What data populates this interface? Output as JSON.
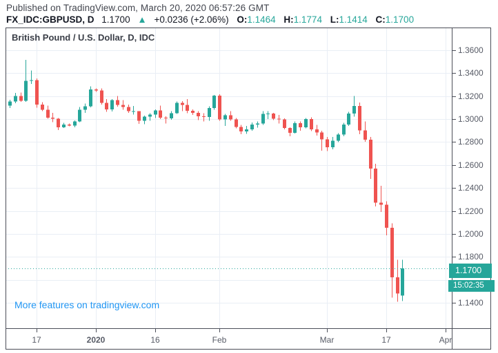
{
  "header": {
    "published": "Published on TradingView.com, March 20, 2020 06:57:26 GMT",
    "symbol": "FX_IDC:GBPUSD, D",
    "price": "1.1700",
    "arrow": "▲",
    "change": "+0.0236 (+2.06%)",
    "open_label": "O:",
    "open": "1.1464",
    "high_label": "H:",
    "high": "1.1774",
    "low_label": "L:",
    "low": "1.1414",
    "close_label": "C:",
    "close": "1.1700"
  },
  "chart": {
    "title": "British Pound / U.S. Dollar, D, IDC",
    "watermark": "More features on tradingview.com",
    "last_price_label": "1.1700",
    "countdown": "15:02:35",
    "colors": {
      "up": "#26a69a",
      "down": "#ef5350",
      "last_price_line": "#26a69a",
      "label_bg": "#26a69a",
      "watermark_blue": "#2196f3",
      "grid": "#e9eef5",
      "frame": "#4a4d57",
      "axis_text": "#575b66"
    }
  },
  "chart_data": {
    "type": "candlestick",
    "title": "British Pound / U.S. Dollar, D, IDC",
    "symbol": "GBPUSD",
    "interval": "D",
    "last_price": 1.17,
    "y_axis": {
      "visible_ticks": [
        "1.3600",
        "1.3400",
        "1.3200",
        "1.3000",
        "1.2800",
        "1.2600",
        "1.2400",
        "1.2200",
        "1.2000",
        "1.1800",
        "1.1400"
      ],
      "grid_step": 0.02,
      "grid_top": 1.36,
      "grid_lines": 12,
      "ylim": [
        1.118,
        1.38
      ]
    },
    "x_axis": {
      "ticks": [
        {
          "label": "17",
          "i": 5,
          "bold": false
        },
        {
          "label": "2020",
          "i": 16,
          "bold": true
        },
        {
          "label": "16",
          "i": 27,
          "bold": false
        },
        {
          "label": "Feb",
          "i": 39,
          "bold": false
        },
        {
          "label": "Mar",
          "i": 59,
          "bold": false
        },
        {
          "label": "17",
          "i": 70,
          "bold": false
        },
        {
          "label": "Apr",
          "i": 81,
          "bold": false
        }
      ]
    },
    "candles": [
      [
        "Dec 10",
        1.3118,
        1.3167,
        1.3095,
        1.3152
      ],
      [
        "Dec 11",
        1.3152,
        1.3228,
        1.3139,
        1.32
      ],
      [
        "Dec 12",
        1.32,
        1.323,
        1.315,
        1.3158
      ],
      [
        "Dec 13",
        1.3158,
        1.3515,
        1.315,
        1.3332
      ],
      [
        "Dec 16",
        1.3332,
        1.3422,
        1.3305,
        1.334
      ],
      [
        "Dec 17",
        1.334,
        1.3355,
        1.31,
        1.3125
      ],
      [
        "Dec 18",
        1.3125,
        1.3148,
        1.307,
        1.308
      ],
      [
        "Dec 19",
        1.308,
        1.3118,
        1.3003,
        1.3012
      ],
      [
        "Dec 20",
        1.3012,
        1.3055,
        1.2975,
        1.3002
      ],
      [
        "Dec 23",
        1.3002,
        1.3008,
        1.2905,
        1.293
      ],
      [
        "Dec 24",
        1.293,
        1.2968,
        1.2923,
        1.2952
      ],
      [
        "Dec 25",
        1.2952,
        1.2962,
        1.2938,
        1.2944
      ],
      [
        "Dec 26",
        1.2944,
        1.2988,
        1.2928,
        1.298
      ],
      [
        "Dec 27",
        1.298,
        1.3105,
        1.2975,
        1.3082
      ],
      [
        "Dec 30",
        1.3082,
        1.3135,
        1.3055,
        1.311
      ],
      [
        "Dec 31",
        1.311,
        1.3284,
        1.3102,
        1.3257
      ],
      [
        "Jan 1",
        1.3257,
        1.3268,
        1.3238,
        1.3248
      ],
      [
        "Jan 2",
        1.3248,
        1.3268,
        1.3125,
        1.3142
      ],
      [
        "Jan 3",
        1.3142,
        1.3175,
        1.3062,
        1.3085
      ],
      [
        "Jan 6",
        1.3085,
        1.3175,
        1.3065,
        1.3166
      ],
      [
        "Jan 7",
        1.3166,
        1.32,
        1.3108,
        1.3122
      ],
      [
        "Jan 8",
        1.3122,
        1.3165,
        1.308,
        1.3105
      ],
      [
        "Jan 9",
        1.3105,
        1.3125,
        1.3055,
        1.307
      ],
      [
        "Jan 10",
        1.3065,
        1.3115,
        1.304,
        1.3068
      ],
      [
        "Jan 13",
        1.3068,
        1.307,
        1.296,
        1.2985
      ],
      [
        "Jan 14",
        1.2985,
        1.303,
        1.2955,
        1.3022
      ],
      [
        "Jan 15",
        1.3022,
        1.305,
        1.2985,
        1.304
      ],
      [
        "Jan 16",
        1.304,
        1.3085,
        1.301,
        1.3075
      ],
      [
        "Jan 17",
        1.3075,
        1.3118,
        1.3,
        1.3012
      ],
      [
        "Jan 20",
        1.3012,
        1.3025,
        1.2962,
        1.3005
      ],
      [
        "Jan 21",
        1.3005,
        1.3068,
        1.2995,
        1.305
      ],
      [
        "Jan 22",
        1.305,
        1.3153,
        1.3045,
        1.314
      ],
      [
        "Jan 23",
        1.314,
        1.3155,
        1.307,
        1.3122
      ],
      [
        "Jan 24",
        1.3122,
        1.3175,
        1.3052,
        1.3072
      ],
      [
        "Jan 27",
        1.3072,
        1.3085,
        1.3035,
        1.3055
      ],
      [
        "Jan 28",
        1.3055,
        1.307,
        1.299,
        1.3025
      ],
      [
        "Jan 29",
        1.3025,
        1.305,
        1.2978,
        1.3018
      ],
      [
        "Jan 30",
        1.3018,
        1.311,
        1.2985,
        1.3095
      ],
      [
        "Jan 31",
        1.3095,
        1.321,
        1.308,
        1.3205
      ],
      [
        "Feb 3",
        1.3205,
        1.3215,
        1.2985,
        1.2998
      ],
      [
        "Feb 4",
        1.2998,
        1.3045,
        1.294,
        1.3032
      ],
      [
        "Feb 5",
        1.3032,
        1.307,
        1.2985,
        1.2998
      ],
      [
        "Feb 6",
        1.2998,
        1.301,
        1.292,
        1.2932
      ],
      [
        "Feb 7",
        1.2932,
        1.295,
        1.287,
        1.2892
      ],
      [
        "Feb 10",
        1.2892,
        1.294,
        1.2872,
        1.2912
      ],
      [
        "Feb 11",
        1.2912,
        1.297,
        1.29,
        1.2952
      ],
      [
        "Feb 12",
        1.2952,
        1.298,
        1.2925,
        1.2962
      ],
      [
        "Feb 13",
        1.2962,
        1.307,
        1.295,
        1.3045
      ],
      [
        "Feb 14",
        1.3045,
        1.307,
        1.3,
        1.3048
      ],
      [
        "Feb 17",
        1.3048,
        1.3055,
        1.299,
        1.3002
      ],
      [
        "Feb 18",
        1.3002,
        1.3035,
        1.2962,
        1.2997
      ],
      [
        "Feb 19",
        1.2997,
        1.3005,
        1.2912,
        1.2922
      ],
      [
        "Feb 20",
        1.2922,
        1.293,
        1.285,
        1.2882
      ],
      [
        "Feb 21",
        1.2882,
        1.298,
        1.2875,
        1.2965
      ],
      [
        "Feb 24",
        1.2965,
        1.298,
        1.29,
        1.2928
      ],
      [
        "Feb 25",
        1.2928,
        1.301,
        1.292,
        1.3
      ],
      [
        "Feb 26",
        1.3,
        1.3015,
        1.2895,
        1.2912
      ],
      [
        "Feb 27",
        1.2912,
        1.295,
        1.2858,
        1.2885
      ],
      [
        "Feb 28",
        1.2885,
        1.29,
        1.2725,
        1.2823
      ],
      [
        "Mar 2",
        1.2823,
        1.2845,
        1.2722,
        1.2755
      ],
      [
        "Mar 3",
        1.2755,
        1.2845,
        1.2738,
        1.2812
      ],
      [
        "Mar 4",
        1.2812,
        1.2878,
        1.28,
        1.2865
      ],
      [
        "Mar 5",
        1.2865,
        1.2968,
        1.285,
        1.2952
      ],
      [
        "Mar 6",
        1.2952,
        1.3062,
        1.294,
        1.3048
      ],
      [
        "Mar 9",
        1.3048,
        1.32,
        1.3022,
        1.3115
      ],
      [
        "Mar 10",
        1.3115,
        1.3145,
        1.287,
        1.2902
      ],
      [
        "Mar 11",
        1.2902,
        1.2978,
        1.2802,
        1.2822
      ],
      [
        "Mar 12",
        1.2822,
        1.2845,
        1.248,
        1.257
      ],
      [
        "Mar 13",
        1.257,
        1.2612,
        1.224,
        1.2272
      ],
      [
        "Mar 16",
        1.2272,
        1.242,
        1.219,
        1.2255
      ],
      [
        "Mar 17",
        1.2255,
        1.2285,
        1.1988,
        1.2052
      ],
      [
        "Mar 18",
        1.2052,
        1.2092,
        1.1445,
        1.1622
      ],
      [
        "Mar 19",
        1.1622,
        1.1775,
        1.141,
        1.148
      ],
      [
        "Mar 20",
        1.1464,
        1.1774,
        1.1414,
        1.17
      ]
    ]
  }
}
